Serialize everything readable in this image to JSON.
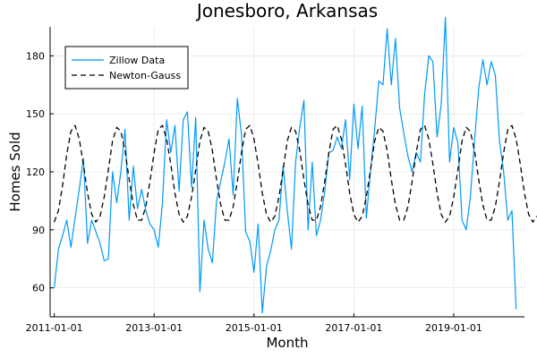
{
  "chart_data": {
    "type": "line",
    "title": "Jonesboro, Arkansas",
    "xlabel": "Month",
    "ylabel": "Homes Sold",
    "xlim": [
      2010.917,
      2020.417
    ],
    "ylim": [
      45,
      195
    ],
    "x_ticks": [
      {
        "value": 2011.0,
        "label": "2011-01-01"
      },
      {
        "value": 2013.0,
        "label": "2013-01-01"
      },
      {
        "value": 2015.0,
        "label": "2015-01-01"
      },
      {
        "value": 2017.0,
        "label": "2017-01-01"
      },
      {
        "value": 2019.0,
        "label": "2019-01-01"
      }
    ],
    "y_ticks": [
      {
        "value": 60,
        "label": "60"
      },
      {
        "value": 90,
        "label": "90"
      },
      {
        "value": 120,
        "label": "120"
      },
      {
        "value": 150,
        "label": "150"
      },
      {
        "value": 180,
        "label": "180"
      }
    ],
    "grid": true,
    "legend_position": "top-left",
    "x_start": 2011.0,
    "x_step": 0.0833333,
    "series": [
      {
        "name": "Zillow Data",
        "color": "#009af9",
        "dash": "solid",
        "values": [
          60,
          80,
          87,
          95,
          81,
          96,
          111,
          127,
          83,
          95,
          89,
          83,
          74,
          75,
          120,
          104,
          120,
          142,
          95,
          123,
          101,
          111,
          100,
          93,
          90,
          81,
          104,
          147,
          130,
          144,
          110,
          147,
          151,
          112,
          148,
          58,
          95,
          80,
          73,
          105,
          115,
          125,
          137,
          108,
          158,
          139,
          89,
          84,
          68,
          93,
          47,
          71,
          79,
          90,
          95,
          123,
          100,
          80,
          125,
          143,
          157,
          90,
          125,
          87,
          95,
          110,
          130,
          131,
          138,
          132,
          147,
          116,
          155,
          132,
          154,
          96,
          120,
          142,
          167,
          165,
          194,
          165,
          189,
          153,
          140,
          128,
          120,
          130,
          125,
          160,
          180,
          177,
          138,
          155,
          200,
          125,
          143,
          135,
          95,
          90,
          107,
          136,
          163,
          178,
          165,
          177,
          170,
          136,
          120,
          95,
          100,
          49
        ]
      },
      {
        "name": "Newton-Gauss",
        "color": "#000000",
        "dash": "dashed",
        "values": [
          94,
          100,
          113,
          129,
          141,
          144,
          137,
          124,
          109,
          98,
          94,
          97,
          107,
          121,
          136,
          143,
          141,
          131,
          116,
          103,
          95,
          95,
          102,
          115,
          130,
          142,
          144,
          137,
          124,
          109,
          98,
          94,
          97,
          107,
          121,
          136,
          143,
          141,
          131,
          116,
          103,
          95,
          95,
          102,
          115,
          130,
          142,
          144,
          137,
          124,
          109,
          98,
          94,
          97,
          107,
          121,
          136,
          143,
          141,
          131,
          116,
          103,
          95,
          95,
          102,
          115,
          130,
          142,
          144,
          137,
          124,
          109,
          98,
          94,
          97,
          107,
          121,
          136,
          143,
          141,
          131,
          116,
          103,
          95,
          95,
          102,
          115,
          130,
          142,
          144,
          137,
          124,
          109,
          98,
          94,
          97,
          107,
          121,
          136,
          143,
          141,
          131,
          116,
          103,
          95,
          95,
          102,
          115,
          130,
          142,
          144,
          137,
          124,
          109,
          98,
          94,
          97
        ]
      }
    ]
  }
}
